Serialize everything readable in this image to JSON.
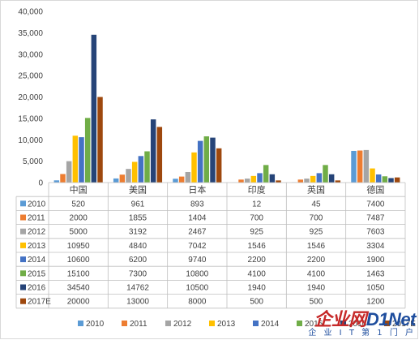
{
  "chart_data": {
    "type": "bar",
    "categories": [
      "中国",
      "美国",
      "日本",
      "印度",
      "英国",
      "德国"
    ],
    "series": [
      {
        "name": "2010",
        "color": "#5b9bd5",
        "values": [
          520,
          961,
          893,
          12,
          45,
          7400
        ]
      },
      {
        "name": "2011",
        "color": "#ed7d31",
        "values": [
          2000,
          1855,
          1404,
          700,
          700,
          7487
        ]
      },
      {
        "name": "2012",
        "color": "#a5a5a5",
        "values": [
          5000,
          3192,
          2467,
          925,
          925,
          7603
        ]
      },
      {
        "name": "2013",
        "color": "#ffc000",
        "values": [
          10950,
          4840,
          7042,
          1546,
          1546,
          3304
        ]
      },
      {
        "name": "2014",
        "color": "#4472c4",
        "values": [
          10600,
          6200,
          9740,
          2200,
          2200,
          1900
        ]
      },
      {
        "name": "2015",
        "color": "#70ad47",
        "values": [
          15100,
          7300,
          10800,
          4100,
          4100,
          1463
        ]
      },
      {
        "name": "2016",
        "color": "#264478",
        "values": [
          34540,
          14762,
          10500,
          1940,
          1940,
          1050
        ]
      },
      {
        "name": "2017E",
        "color": "#9e480e",
        "values": [
          20000,
          13000,
          8000,
          500,
          500,
          1200
        ]
      }
    ],
    "ylim": [
      0,
      40000
    ],
    "yticks": [
      "0",
      "5,000",
      "10,000",
      "15,000",
      "20,000",
      "25,000",
      "30,000",
      "35,000",
      "40,000"
    ],
    "grid": false,
    "legend": "bottom",
    "data_table": true,
    "title": "",
    "xlabel": "",
    "ylabel": ""
  },
  "watermark": {
    "main_red": "企业网",
    "main_blue": "D1Net",
    "sub": "企 业 I T 第 1 门 户"
  }
}
